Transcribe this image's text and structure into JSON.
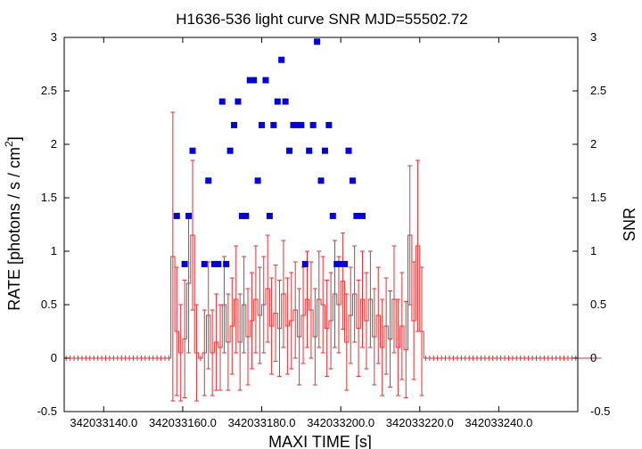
{
  "chart_data": {
    "type": "scatter",
    "title": "H1636-536 light curve  SNR MJD=55502.72",
    "xlabel": "MAXI TIME [s]",
    "ylabel_main": "RATE [photons / s / cm",
    "ylabel_sup": "2",
    "ylabel_end": "]",
    "y2label": "SNR",
    "xlim": [
      342033130.0,
      342033260.0
    ],
    "ylim": [
      -0.5,
      3.0
    ],
    "y2lim": [
      -0.5,
      3.0
    ],
    "x_ticks": [
      342033140.0,
      342033160.0,
      342033180.0,
      342033200.0,
      342033220.0,
      342033240.0
    ],
    "x_tick_labels": [
      "342033140.0",
      "342033160.0",
      "342033180.0",
      "342033200.0",
      "342033220.0",
      "342033240.0"
    ],
    "y_ticks": [
      -0.5,
      0,
      0.5,
      1,
      1.5,
      2,
      2.5,
      3
    ],
    "y_tick_labels": [
      "-0.5",
      "0",
      "0.5",
      "1",
      "1.5",
      "2",
      "2.5",
      "3"
    ],
    "y2_ticks": [
      -0.5,
      0,
      0.5,
      1,
      1.5,
      2,
      2.5,
      3
    ],
    "y2_tick_labels": [
      "-0.5",
      "0",
      "0.5",
      "1",
      "1.5",
      "2",
      "2.5",
      "3"
    ],
    "grid": false,
    "rate_color": "#dd3333",
    "snr_color": "#0000dd",
    "rate_x_start": 342033130.0,
    "rate_x_step": 1.0,
    "rate_values": [
      0,
      0,
      0,
      0,
      0,
      0,
      0,
      0,
      0,
      0,
      0,
      0,
      0,
      0,
      0,
      0,
      0,
      0,
      0,
      0,
      0,
      0,
      0,
      0,
      0,
      0,
      0,
      0.95,
      0.25,
      0.05,
      0.18,
      0.7,
      1.15,
      0.05,
      0,
      0.05,
      0.4,
      0.05,
      0.15,
      0.1,
      0.5,
      0.15,
      0.3,
      0.55,
      0.15,
      0.5,
      0.2,
      0.35,
      0.55,
      0.4,
      0.5,
      0.65,
      0.3,
      0.42,
      0.28,
      0.6,
      0.3,
      0.35,
      0.45,
      0.2,
      0.4,
      0.55,
      0.45,
      0.2,
      0.55,
      0.5,
      0.28,
      0.35,
      0.6,
      0.5,
      0.72,
      0.15,
      0.4,
      0.6,
      0.28,
      0.55,
      0.35,
      0.55,
      0.2,
      0.4,
      0.1,
      0.3,
      0.18,
      0.55,
      0.1,
      0.3,
      0.08,
      1.15,
      0.35,
      1.05,
      0.25,
      0,
      0,
      0,
      0,
      0,
      0,
      0,
      0,
      0,
      0,
      0,
      0,
      0,
      0,
      0,
      0,
      0,
      0,
      0,
      0,
      0,
      0,
      0,
      0,
      0,
      0,
      0,
      0,
      0,
      0,
      0,
      0,
      0,
      0,
      0,
      0,
      0,
      0,
      0,
      0,
      0,
      0,
      0,
      0,
      0,
      0
    ],
    "rate_errors": [
      0,
      0,
      0,
      0,
      0,
      0,
      0,
      0,
      0,
      0,
      0,
      0,
      0,
      0,
      0,
      0,
      0,
      0,
      0,
      0,
      0,
      0,
      0,
      0,
      0,
      0,
      0,
      1.35,
      0.6,
      0.45,
      0.55,
      0.65,
      0.7,
      0.45,
      0,
      0.4,
      0.5,
      0.4,
      0.45,
      0.4,
      0.45,
      0.45,
      0.45,
      0.5,
      0.45,
      0.45,
      0.45,
      0.45,
      0.5,
      0.45,
      0.45,
      0.5,
      0.45,
      0.45,
      0.45,
      0.5,
      0.45,
      0.45,
      0.45,
      0.45,
      0.45,
      0.45,
      0.45,
      0.45,
      0.45,
      0.45,
      0.45,
      0.45,
      0.5,
      0.45,
      0.45,
      0.45,
      0.45,
      0.45,
      0.45,
      0.45,
      0.45,
      0.45,
      0.45,
      0.45,
      0.45,
      0.45,
      0.45,
      0.5,
      0.45,
      0.5,
      0.45,
      0.65,
      0.55,
      0.8,
      0.6,
      0,
      0,
      0,
      0,
      0,
      0,
      0,
      0,
      0,
      0,
      0,
      0,
      0,
      0,
      0,
      0,
      0,
      0,
      0,
      0,
      0,
      0,
      0,
      0,
      0,
      0,
      0,
      0,
      0,
      0,
      0,
      0,
      0,
      0,
      0,
      0,
      0,
      0,
      0,
      0,
      0,
      0,
      0,
      0,
      0,
      0
    ],
    "snr_x": [
      342033158.5,
      342033160.5,
      342033161.5,
      342033162.5,
      342033165.5,
      342033166.5,
      342033168.0,
      342033169.0,
      342033170.0,
      342033171.0,
      342033172.0,
      342033173.0,
      342033174.0,
      342033175.0,
      342033176.0,
      342033177.0,
      342033178.0,
      342033179.0,
      342033180.0,
      342033181.0,
      342033182.0,
      342033183.0,
      342033184.0,
      342033185.0,
      342033186.0,
      342033187.0,
      342033188.0,
      342033189.0,
      342033190.0,
      342033191.0,
      342033192.0,
      342033193.0,
      342033194.0,
      342033195.0,
      342033196.0,
      342033197.0,
      342033198.0,
      342033199.0,
      342033200.0,
      342033201.0,
      342033202.0,
      342033203.0,
      342033204.0,
      342033205.5
    ],
    "snr_y": [
      1.33,
      0.88,
      1.33,
      1.94,
      0.88,
      1.66,
      0.88,
      0.88,
      2.4,
      0.88,
      1.94,
      2.18,
      2.4,
      1.33,
      1.33,
      2.6,
      2.6,
      1.66,
      2.18,
      2.6,
      1.33,
      2.18,
      2.4,
      2.79,
      2.4,
      1.94,
      2.18,
      2.18,
      2.18,
      0.88,
      1.94,
      2.18,
      2.96,
      1.66,
      1.94,
      2.18,
      1.33,
      0.88,
      0.88,
      0.88,
      1.94,
      1.66,
      1.33,
      1.33
    ]
  }
}
